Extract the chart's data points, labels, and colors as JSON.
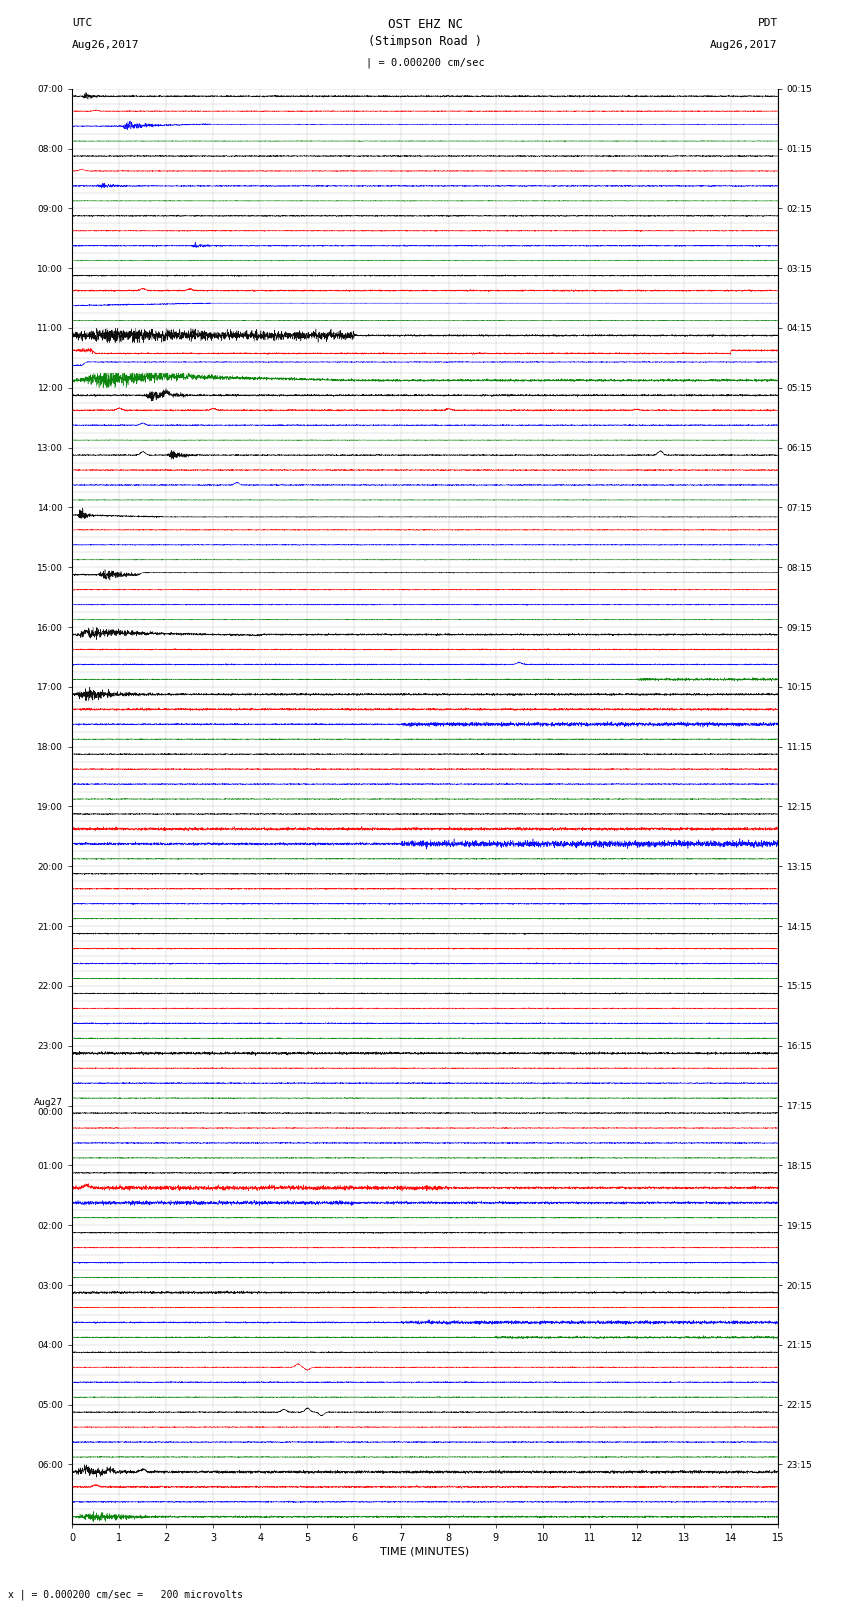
{
  "title_line1": "OST EHZ NC",
  "title_line2": "(Stimpson Road )",
  "title_scale": "| = 0.000200 cm/sec",
  "label_left_top": "UTC",
  "label_left_date": "Aug26,2017",
  "label_right_top": "PDT",
  "label_right_date": "Aug26,2017",
  "xlabel": "TIME (MINUTES)",
  "scale_note": "x | = 0.000200 cm/sec =   200 microvolts",
  "utc_labels": [
    "07:00",
    "08:00",
    "09:00",
    "10:00",
    "11:00",
    "12:00",
    "13:00",
    "14:00",
    "15:00",
    "16:00",
    "17:00",
    "18:00",
    "19:00",
    "20:00",
    "21:00",
    "22:00",
    "23:00",
    "Aug27\n00:00",
    "01:00",
    "02:00",
    "03:00",
    "04:00",
    "05:00",
    "06:00"
  ],
  "utc_row_indices": [
    0,
    4,
    8,
    12,
    16,
    20,
    24,
    28,
    32,
    36,
    40,
    44,
    48,
    52,
    56,
    60,
    64,
    68,
    72,
    76,
    80,
    84,
    88,
    92
  ],
  "pdt_labels": [
    "00:15",
    "01:15",
    "02:15",
    "03:15",
    "04:15",
    "05:15",
    "06:15",
    "07:15",
    "08:15",
    "09:15",
    "10:15",
    "11:15",
    "12:15",
    "13:15",
    "14:15",
    "15:15",
    "16:15",
    "17:15",
    "18:15",
    "19:15",
    "20:15",
    "21:15",
    "22:15",
    "23:15"
  ],
  "pdt_row_indices": [
    0,
    4,
    8,
    12,
    16,
    20,
    24,
    28,
    32,
    36,
    40,
    44,
    48,
    52,
    56,
    60,
    64,
    68,
    72,
    76,
    80,
    84,
    88,
    92
  ],
  "n_rows": 96,
  "colors_cycle": [
    "black",
    "red",
    "blue",
    "green"
  ],
  "x_min": 0,
  "x_max": 15,
  "x_ticks": [
    0,
    1,
    2,
    3,
    4,
    5,
    6,
    7,
    8,
    9,
    10,
    11,
    12,
    13,
    14,
    15
  ],
  "bg_color": "#ffffff",
  "grid_color": "#aaaaaa",
  "row_scale": 0.45
}
